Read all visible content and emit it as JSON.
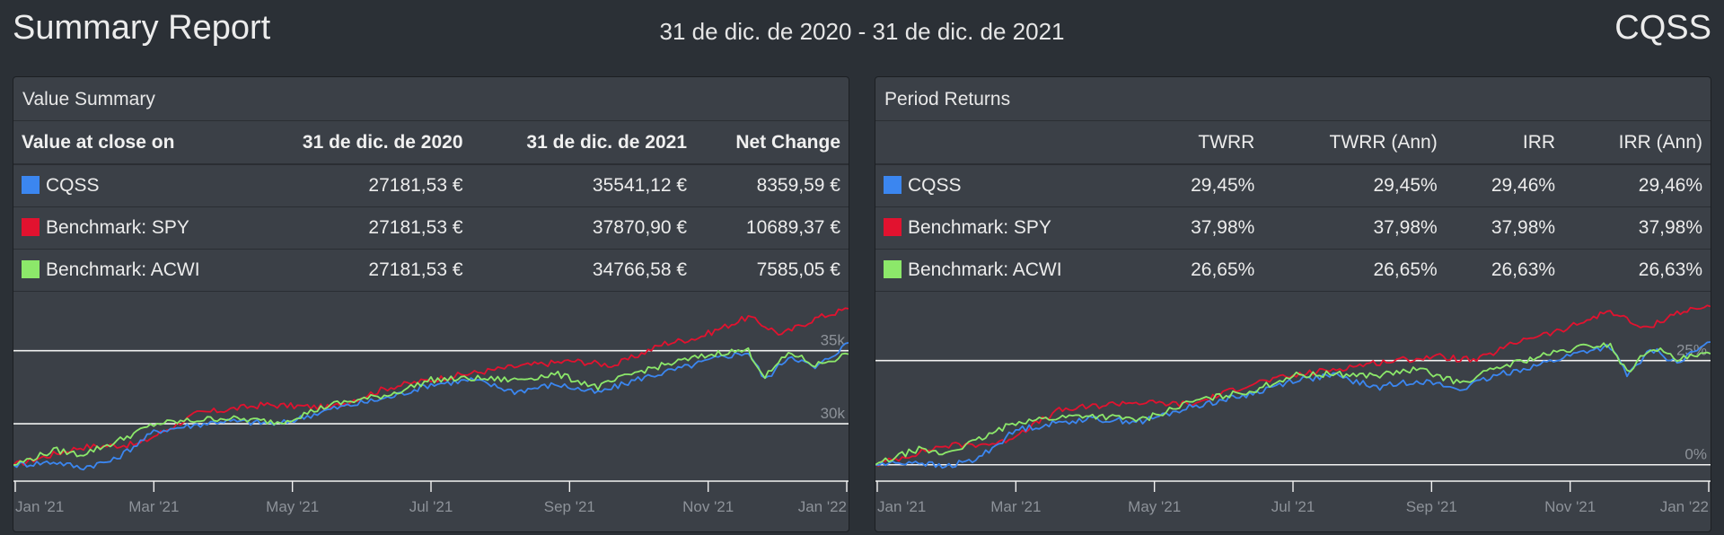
{
  "header": {
    "title": "Summary Report",
    "period": "31 de dic. de 2020 - 31 de dic. de 2021",
    "portfolio": "CQSS"
  },
  "colors": {
    "background": "#2b3036",
    "panel": "#3b4047",
    "cqss": "#3b86f0",
    "spy": "#e2122f",
    "acwi": "#8ce86a"
  },
  "value_summary": {
    "title": "Value Summary",
    "columns": [
      "Value at close on",
      "31 de dic. de 2020",
      "31 de dic. de 2021",
      "Net Change"
    ],
    "rows": [
      {
        "name": "CQSS",
        "swatch": "#3b86f0",
        "start": "27181,53 €",
        "end": "35541,12 €",
        "change": "8359,59 €"
      },
      {
        "name": "Benchmark: SPY",
        "swatch": "#e2122f",
        "start": "27181,53 €",
        "end": "37870,90 €",
        "change": "10689,37 €"
      },
      {
        "name": "Benchmark: ACWI",
        "swatch": "#8ce86a",
        "start": "27181,53 €",
        "end": "34766,58 €",
        "change": "7585,05 €"
      }
    ]
  },
  "period_returns": {
    "title": "Period Returns",
    "columns": [
      "",
      "TWRR",
      "TWRR (Ann)",
      "IRR",
      "IRR (Ann)"
    ],
    "rows": [
      {
        "name": "CQSS",
        "swatch": "#3b86f0",
        "twrr": "29,45%",
        "twrr_ann": "29,45%",
        "irr": "29,46%",
        "irr_ann": "29,46%"
      },
      {
        "name": "Benchmark: SPY",
        "swatch": "#e2122f",
        "twrr": "37,98%",
        "twrr_ann": "37,98%",
        "irr": "37,98%",
        "irr_ann": "37,98%"
      },
      {
        "name": "Benchmark: ACWI",
        "swatch": "#8ce86a",
        "twrr": "26,65%",
        "twrr_ann": "26,65%",
        "irr": "26,63%",
        "irr_ann": "26,63%"
      }
    ]
  },
  "chart_data": [
    {
      "type": "line",
      "x_ticks": [
        "Jan '21",
        "Mar '21",
        "May '21",
        "Jul '21",
        "Sep '21",
        "Nov '21",
        "Jan '22"
      ],
      "y_ticks": [
        {
          "value": 30000,
          "label": "30k"
        },
        {
          "value": 35000,
          "label": "35k"
        }
      ],
      "ylim": [
        26200,
        38600
      ],
      "grid": true,
      "series": [
        {
          "name": "Benchmark: SPY",
          "color": "#e2122f",
          "x": [
            0,
            0.08,
            0.15,
            0.22,
            0.3,
            0.38,
            0.45,
            0.52,
            0.6,
            0.67,
            0.72,
            0.78,
            0.82,
            0.88,
            0.92,
            0.96,
            1.0
          ],
          "y": [
            27181,
            28400,
            28600,
            30700,
            31300,
            31100,
            32500,
            33200,
            33900,
            34300,
            34000,
            35500,
            35900,
            37300,
            36100,
            37200,
            37870
          ]
        },
        {
          "name": "CQSS",
          "color": "#3b86f0",
          "x": [
            0,
            0.05,
            0.08,
            0.12,
            0.17,
            0.25,
            0.32,
            0.38,
            0.45,
            0.5,
            0.55,
            0.6,
            0.65,
            0.7,
            0.75,
            0.8,
            0.85,
            0.88,
            0.9,
            0.93,
            0.96,
            1.0
          ],
          "y": [
            27181,
            27400,
            27000,
            27500,
            29500,
            30200,
            30000,
            31000,
            31800,
            32700,
            33000,
            32200,
            32700,
            32100,
            33100,
            33800,
            34600,
            34900,
            33000,
            34700,
            33800,
            35541
          ]
        },
        {
          "name": "Benchmark: ACWI",
          "color": "#8ce86a",
          "x": [
            0,
            0.05,
            0.08,
            0.12,
            0.17,
            0.25,
            0.32,
            0.38,
            0.45,
            0.5,
            0.55,
            0.6,
            0.65,
            0.7,
            0.75,
            0.8,
            0.85,
            0.88,
            0.9,
            0.93,
            0.96,
            1.0
          ],
          "y": [
            27181,
            28200,
            27900,
            28700,
            30000,
            30400,
            30100,
            31300,
            32000,
            33000,
            33100,
            33000,
            33400,
            32500,
            33600,
            34300,
            34900,
            35000,
            33200,
            34900,
            34000,
            34766
          ]
        }
      ]
    },
    {
      "type": "line",
      "x_ticks": [
        "Jan '21",
        "Mar '21",
        "May '21",
        "Jul '21",
        "Sep '21",
        "Nov '21",
        "Jan '22"
      ],
      "y_ticks": [
        {
          "value": 0,
          "label": "0%"
        },
        {
          "value": 25,
          "label": "25%"
        }
      ],
      "ylim": [
        -3.5,
        40
      ],
      "grid": true,
      "series": [
        {
          "name": "Benchmark: SPY",
          "color": "#e2122f",
          "x": [
            0,
            0.08,
            0.15,
            0.22,
            0.3,
            0.38,
            0.45,
            0.52,
            0.6,
            0.67,
            0.72,
            0.78,
            0.82,
            0.88,
            0.92,
            0.96,
            1.0
          ],
          "y": [
            0,
            4.5,
            5.2,
            13,
            15,
            14.5,
            19.5,
            22,
            24.5,
            26,
            25,
            30.5,
            32,
            37,
            32.5,
            36.5,
            37.98
          ]
        },
        {
          "name": "CQSS",
          "color": "#3b86f0",
          "x": [
            0,
            0.05,
            0.08,
            0.12,
            0.17,
            0.25,
            0.32,
            0.38,
            0.45,
            0.5,
            0.55,
            0.6,
            0.65,
            0.7,
            0.75,
            0.8,
            0.85,
            0.88,
            0.9,
            0.93,
            0.96,
            1.0
          ],
          "y": [
            0,
            0.8,
            -0.6,
            1.2,
            8.5,
            11,
            10.4,
            14,
            17,
            20.3,
            21.4,
            18.5,
            20.3,
            18.1,
            21.8,
            24.3,
            27.3,
            28.4,
            21.4,
            27.7,
            24.4,
            29.45
          ]
        },
        {
          "name": "Benchmark: ACWI",
          "color": "#8ce86a",
          "x": [
            0,
            0.05,
            0.08,
            0.12,
            0.17,
            0.25,
            0.32,
            0.38,
            0.45,
            0.5,
            0.55,
            0.6,
            0.65,
            0.7,
            0.75,
            0.8,
            0.85,
            0.88,
            0.9,
            0.93,
            0.96,
            1.0
          ],
          "y": [
            0,
            3.7,
            2.6,
            5.6,
            10.4,
            11.9,
            10.8,
            15.2,
            17.7,
            21.4,
            21.8,
            21.4,
            22.9,
            19.6,
            23.6,
            26.2,
            28.4,
            28.8,
            22.1,
            28.4,
            25.1,
            26.65
          ]
        }
      ]
    }
  ]
}
